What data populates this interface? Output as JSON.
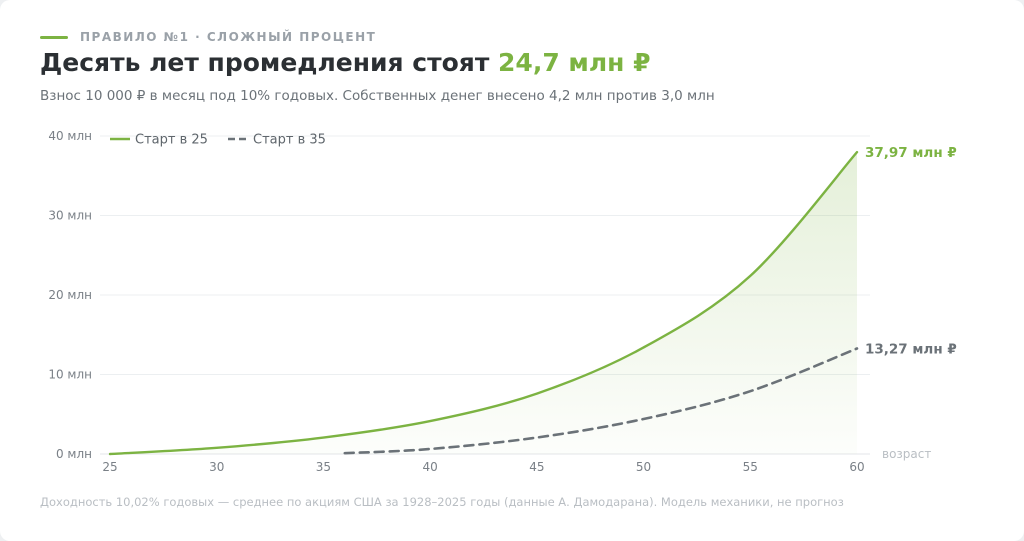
{
  "header": {
    "kicker": "ПРАВИЛО №1 · СЛОЖНЫЙ ПРОЦЕНТ",
    "title_main": "Десять лет промедления стоят ",
    "title_accent": "24,7 млн ₽",
    "subtitle": "Взнос 10 000 ₽ в месяц под 10% годовых. Собственных денег внесено 4,2 млн против 3,0 млн"
  },
  "footnote": "Доходность 10,02% годовых — среднее по акциям США за 1928–2025 годы (данные А. Дамодарана). Модель механики, не прогноз",
  "colors": {
    "green": "#7cb342",
    "gray": "#6b7278",
    "grid": "#eceff1"
  },
  "chart_data": {
    "type": "area",
    "xlabel": "возраст",
    "ylabel": "",
    "xlim": [
      25,
      60
    ],
    "ylim": [
      0,
      40
    ],
    "x_ticks": [
      "25",
      "30",
      "35",
      "40",
      "45",
      "50",
      "55",
      "60"
    ],
    "y_ticks": [
      "0 млн",
      "10 млн",
      "20 млн",
      "30 млн",
      "40 млн"
    ],
    "grid": true,
    "legend_position": "top-left",
    "series": [
      {
        "name": "Старт в 25",
        "style": "solid",
        "fill": true,
        "end_label": "37,97 млн ₽",
        "x": [
          25,
          30,
          35,
          40,
          45,
          50,
          55,
          60
        ],
        "y": [
          0,
          0.78,
          2.07,
          4.14,
          7.6,
          13.4,
          22.4,
          37.97
        ]
      },
      {
        "name": "Старт в 35",
        "style": "dashed",
        "fill": false,
        "end_label": "13,27 млн ₽",
        "x": [
          36,
          40,
          45,
          50,
          55,
          60
        ],
        "y": [
          0.1,
          0.63,
          2.07,
          4.4,
          7.9,
          13.27
        ]
      }
    ]
  }
}
